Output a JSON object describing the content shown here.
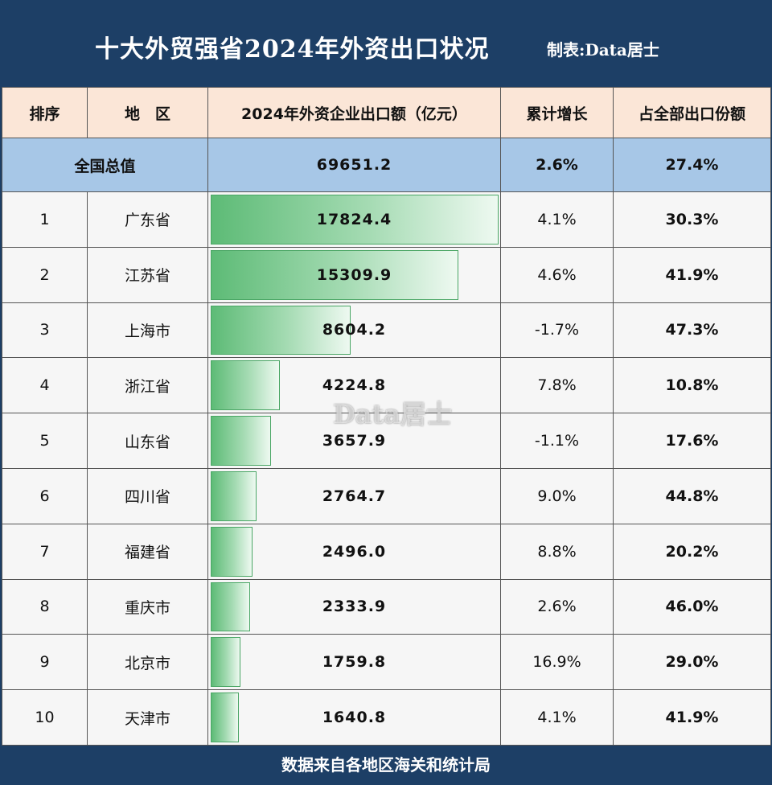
{
  "header": {
    "title": "十大外贸强省2024年外资出口状况",
    "credit": "制表:Data居士"
  },
  "columns": [
    "排序",
    "地　区",
    "2024年外资企业出口额（亿元）",
    "累计增长",
    "占全部出口份额"
  ],
  "total": {
    "label": "全国总值",
    "value": "69651.2",
    "growth": "2.6%",
    "share": "27.4%"
  },
  "chart_data": {
    "type": "bar",
    "title": "十大外贸强省2024年外资出口状况",
    "xlabel": "",
    "ylabel": "2024年外资企业出口额（亿元）",
    "ylim": [
      0,
      17824.4
    ],
    "categories": [
      "广东省",
      "江苏省",
      "上海市",
      "浙江省",
      "山东省",
      "四川省",
      "福建省",
      "重庆市",
      "北京市",
      "天津市"
    ],
    "series": [
      {
        "name": "2024年外资企业出口额（亿元）",
        "values": [
          17824.4,
          15309.9,
          8604.2,
          4224.8,
          3657.9,
          2764.7,
          2496.0,
          2333.9,
          1759.8,
          1640.8
        ]
      }
    ]
  },
  "rows": [
    {
      "rank": "1",
      "region": "广东省",
      "value": "17824.4",
      "growth": "4.1%",
      "share": "30.3%"
    },
    {
      "rank": "2",
      "region": "江苏省",
      "value": "15309.9",
      "growth": "4.6%",
      "share": "41.9%"
    },
    {
      "rank": "3",
      "region": "上海市",
      "value": "8604.2",
      "growth": "-1.7%",
      "share": "47.3%"
    },
    {
      "rank": "4",
      "region": "浙江省",
      "value": "4224.8",
      "growth": "7.8%",
      "share": "10.8%"
    },
    {
      "rank": "5",
      "region": "山东省",
      "value": "3657.9",
      "growth": "-1.1%",
      "share": "17.6%"
    },
    {
      "rank": "6",
      "region": "四川省",
      "value": "2764.7",
      "growth": "9.0%",
      "share": "44.8%"
    },
    {
      "rank": "7",
      "region": "福建省",
      "value": "2496.0",
      "growth": "8.8%",
      "share": "20.2%"
    },
    {
      "rank": "8",
      "region": "重庆市",
      "value": "2333.9",
      "growth": "2.6%",
      "share": "46.0%"
    },
    {
      "rank": "9",
      "region": "北京市",
      "value": "1759.8",
      "growth": "16.9%",
      "share": "29.0%"
    },
    {
      "rank": "10",
      "region": "天津市",
      "value": "1640.8",
      "growth": "4.1%",
      "share": "41.9%"
    }
  ],
  "footer": "数据来自各地区海关和统计局",
  "watermark": "Data居士",
  "colors": {
    "navy": "#1d3f66",
    "header_bg": "#fbe6d7",
    "total_bg": "#a7c7e7",
    "bar_green": "#5dbb76"
  }
}
